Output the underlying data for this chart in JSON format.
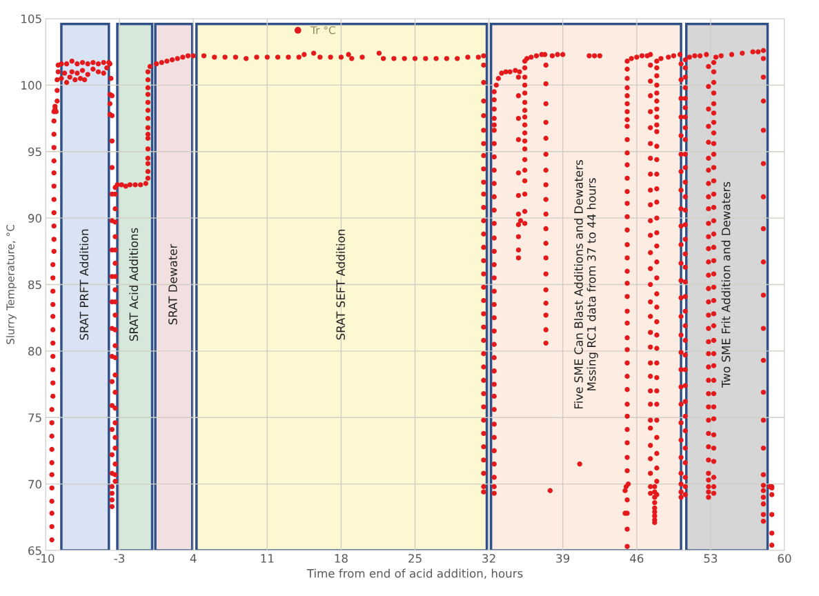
{
  "chart_data": {
    "type": "scatter",
    "xlabel": "Time from end of acid addition, hours",
    "ylabel": "Slurry Temperature, °C",
    "xlim": [
      -10,
      60
    ],
    "xticks": [
      -10,
      -3,
      4,
      11,
      18,
      25,
      32,
      39,
      46,
      53,
      60
    ],
    "ylim": [
      65,
      105
    ],
    "yticks": [
      65,
      70,
      75,
      80,
      85,
      90,
      95,
      100,
      105
    ],
    "grid": true,
    "legend": "top",
    "marker": "circle",
    "bands": [
      {
        "axis": "x",
        "from": -8.5,
        "to": -4.0,
        "label": "SRAT PRFT Addition",
        "color": "#dae3f3"
      },
      {
        "axis": "x",
        "from": -3.2,
        "to": 0.1,
        "label": "SRAT Acid Additions",
        "color": "#d5e8d9"
      },
      {
        "axis": "x",
        "from": 0.4,
        "to": 3.9,
        "label": "SRAT Dewater",
        "color": "#f2dfdf"
      },
      {
        "axis": "x",
        "from": 4.3,
        "to": 31.8,
        "label": "SRAT SEFT Addition",
        "color": "#fdf7d2"
      },
      {
        "axis": "x",
        "from": 32.2,
        "to": 50.2,
        "label": "Five SME Can Blast Additions and Dewaters\nMssing RC1 data from 37 to 44 hours",
        "color": "#fcece1"
      },
      {
        "axis": "x",
        "from": 50.7,
        "to": 58.4,
        "label": "Two SME Frit Addition and Dewaters",
        "color": "#d6d6d6"
      }
    ],
    "series": [
      {
        "name": "Tr °C",
        "color": "#e3191c",
        "x": [
          -9.4,
          -9.4,
          -9.4,
          -9.4,
          -9.4,
          -9.4,
          -9.4,
          -9.4,
          -9.4,
          -9.4,
          -9.4,
          -9.3,
          -9.3,
          -9.3,
          -9.3,
          -9.3,
          -9.3,
          -9.3,
          -9.3,
          -9.3,
          -9.3,
          -9.3,
          -9.2,
          -9.2,
          -9.2,
          -9.2,
          -9.2,
          -9.2,
          -9.2,
          -9.2,
          -9.2,
          -9.2,
          -9.2,
          -9.2,
          -9.1,
          -9.1,
          -9.0,
          -8.9,
          -8.9,
          -8.9,
          -8.8,
          -8.8,
          -8.5,
          -8.0,
          -7.5,
          -7.0,
          -6.5,
          -6.0,
          -5.5,
          -5.0,
          -4.5,
          -4.0,
          -3.9,
          -8.5,
          -8.2,
          -8.0,
          -7.7,
          -7.5,
          -7.2,
          -7.0,
          -6.7,
          -6.5,
          -6.3,
          -6.0,
          -5.5,
          -5.0,
          -4.5,
          -4.2,
          -3.8,
          -3.9,
          -3.9,
          -3.9,
          -3.7,
          -3.7,
          -3.7,
          -3.7,
          -3.7,
          -3.7,
          -3.7,
          -3.7,
          -3.7,
          -3.7,
          -3.7,
          -3.7,
          -3.7,
          -3.7,
          -3.7,
          -3.7,
          -3.7,
          -3.7,
          -3.7,
          -3.7,
          -3.4,
          -3.4,
          -3.4,
          -3.4,
          -3.4,
          -3.4,
          -3.4,
          -3.4,
          -3.4,
          -3.4,
          -3.4,
          -3.4,
          -3.4,
          -3.4,
          -3.4,
          -3.4,
          -3.4,
          -3.4,
          -3.4,
          -3.4,
          -3.4,
          -3.4,
          -3.4,
          -3.2,
          -2.8,
          -2.4,
          -2.0,
          -1.5,
          -1.0,
          -0.5,
          -0.3,
          -0.3,
          -0.3,
          -0.3,
          -0.3,
          -0.3,
          -0.3,
          -0.3,
          -0.3,
          -0.3,
          -0.3,
          -0.3,
          -0.3,
          -0.3,
          -0.3,
          -0.1,
          0.5,
          1.0,
          1.5,
          2.0,
          2.5,
          3.0,
          3.5,
          4.0,
          5,
          6,
          7,
          8,
          9,
          10,
          11,
          12,
          13,
          14,
          14.5,
          15.4,
          16,
          17,
          18,
          18.7,
          19,
          20,
          21.6,
          22,
          23,
          24,
          25,
          26,
          27,
          28,
          29,
          30,
          31,
          31.5,
          31.5,
          31.5,
          31.5,
          31.5,
          31.5,
          31.5,
          31.5,
          31.5,
          31.5,
          31.5,
          31.5,
          31.5,
          31.5,
          31.5,
          31.5,
          31.5,
          31.5,
          31.5,
          31.5,
          31.5,
          31.5,
          31.5,
          31.5,
          31.5,
          31.5,
          31.5,
          31.5,
          31.5,
          31.5,
          31.5,
          31.5,
          31.5,
          31.5,
          32.5,
          32.5,
          32.5,
          32.5,
          32.5,
          32.5,
          32.5,
          32.5,
          32.5,
          32.5,
          32.5,
          32.5,
          32.5,
          32.5,
          32.5,
          32.5,
          32.5,
          32.5,
          32.5,
          32.5,
          32.5,
          32.5,
          32.5,
          32.5,
          32.5,
          32.5,
          32.5,
          32.5,
          32.5,
          32.5,
          32.5,
          32.5,
          32.5,
          32.5,
          32.7,
          32.9,
          33.2,
          33.6,
          34.0,
          34.5,
          34.9,
          34.8,
          34.8,
          34.8,
          34.8,
          34.8,
          34.8,
          34.8,
          34.8,
          34.8,
          34.8,
          34.8,
          35.0,
          35.4,
          35.4,
          35.4,
          35.4,
          35.4,
          35.4,
          35.4,
          35.4,
          35.4,
          35.4,
          35.4,
          35.4,
          35.4,
          35.4,
          35.4,
          35.4,
          35.4,
          35.4,
          35.6,
          36.0,
          36.5,
          37.0,
          37.3,
          37.4,
          37.4,
          37.4,
          37.4,
          37.4,
          37.4,
          37.4,
          37.4,
          37.4,
          37.4,
          37.4,
          37.4,
          37.4,
          37.4,
          37.4,
          37.4,
          37.4,
          37.4,
          37.4,
          37.8,
          38.0,
          38.5,
          39.0,
          40.6,
          41.5,
          42.0,
          42.5,
          45.1,
          45.1,
          44.9,
          45.1,
          45.1,
          44.9,
          45.0,
          45.2,
          45.1,
          45.1,
          45.1,
          45.1,
          45.1,
          45.1,
          45.1,
          45.1,
          45.1,
          45.1,
          45.1,
          45.1,
          45.1,
          45.1,
          45.1,
          45.1,
          45.1,
          45.1,
          45.1,
          45.1,
          45.1,
          45.1,
          45.1,
          45.1,
          45.1,
          45.1,
          45.1,
          45.1,
          45.1,
          45.1,
          45.1,
          45.1,
          45.1,
          45.1,
          45.1,
          45.5,
          46.0,
          46.5,
          47.0,
          47.3,
          47.3,
          47.3,
          47.3,
          47.3,
          47.3,
          47.3,
          47.3,
          47.3,
          47.3,
          47.3,
          47.3,
          47.3,
          47.3,
          47.3,
          47.3,
          47.3,
          47.3,
          47.3,
          47.3,
          47.3,
          47.3,
          47.3,
          47.3,
          47.3,
          47.3,
          47.3,
          47.3,
          47.3,
          47.3,
          47.3,
          47.7,
          47.7,
          47.7,
          47.7,
          47.7,
          47.7,
          47.7,
          47.7,
          47.7,
          47.9,
          47.9,
          47.9,
          47.9,
          47.9,
          47.9,
          47.9,
          47.9,
          47.9,
          47.9,
          47.9,
          47.9,
          47.9,
          47.9,
          47.9,
          47.9,
          47.9,
          47.9,
          47.9,
          47.9,
          47.9,
          47.9,
          47.9,
          47.9,
          47.9,
          47.9,
          47.9,
          47.9,
          47.9,
          47.9,
          47.9,
          47.9,
          47.9,
          47.9,
          47.9,
          48.3,
          49.0,
          49.5,
          50.1,
          50.2,
          50.2,
          50.2,
          50.2,
          50.2,
          50.2,
          50.2,
          50.2,
          50.2,
          50.2,
          50.2,
          50.2,
          50.2,
          50.2,
          50.2,
          50.2,
          50.2,
          50.2,
          50.2,
          50.2,
          50.2,
          50.2,
          50.2,
          50.2,
          50.2,
          50.2,
          50.2,
          50.6,
          50.6,
          50.6,
          50.6,
          50.6,
          50.6,
          50.6,
          50.6,
          50.6,
          50.6,
          50.6,
          50.6,
          50.6,
          50.6,
          50.6,
          50.6,
          50.6,
          50.6,
          50.6,
          50.6,
          50.6,
          50.6,
          50.6,
          50.6,
          50.6,
          50.6,
          50.6,
          50.6,
          50.6,
          50.6,
          50.6,
          50.6,
          50.6,
          50.6,
          51.0,
          51.5,
          52.0,
          52.6,
          52.8,
          52.8,
          52.8,
          52.8,
          52.8,
          52.8,
          52.8,
          52.8,
          52.8,
          52.8,
          52.8,
          52.8,
          52.8,
          52.8,
          52.8,
          52.8,
          52.8,
          52.8,
          52.8,
          52.8,
          52.8,
          52.8,
          52.8,
          52.8,
          52.8,
          52.8,
          52.8,
          52.8,
          52.8,
          52.8,
          52.8,
          52.8,
          52.8,
          52.8,
          53.3,
          53.3,
          53.3,
          53.3,
          53.3,
          53.3,
          53.3,
          53.3,
          53.3,
          53.3,
          53.3,
          53.3,
          53.3,
          53.3,
          53.3,
          53.3,
          53.3,
          53.3,
          53.3,
          53.3,
          53.3,
          53.3,
          53.3,
          53.3,
          53.3,
          53.3,
          53.3,
          53.3,
          53.3,
          53.3,
          53.3,
          53.3,
          53.3,
          53.3,
          53.3,
          53.3,
          53.5,
          54.0,
          55.0,
          56.0,
          57.0,
          57.5,
          58.0,
          58.0,
          58.0,
          58.0,
          58.0,
          58.0,
          58.0,
          58.0,
          58.0,
          58.0,
          58.0,
          58.0,
          58.0,
          58.0,
          58.0,
          58.0,
          58.0,
          58.0,
          58.0,
          58.0,
          58.0,
          58.0,
          58.6,
          58.8,
          58.8,
          58.8,
          58.8,
          58.8,
          58.8
        ],
        "values": [
          65.8,
          66.8,
          67.8,
          68.7,
          69.7,
          70.7,
          71.6,
          72.6,
          73.6,
          74.6,
          75.6,
          76.6,
          77.6,
          78.6,
          79.6,
          80.6,
          81.6,
          82.6,
          83.5,
          84.5,
          85.5,
          86.5,
          87.5,
          88.4,
          89.4,
          90.4,
          91.4,
          92.4,
          93.4,
          94.3,
          95.3,
          96.3,
          97.3,
          98.0,
          98.4,
          98.2,
          98.0,
          98.8,
          99.6,
          100.4,
          101.0,
          101.5,
          101.6,
          101.6,
          101.8,
          101.6,
          101.7,
          101.6,
          101.7,
          101.6,
          101.7,
          101.7,
          101.6,
          100.5,
          100.9,
          100.2,
          100.6,
          101.0,
          100.4,
          100.9,
          100.5,
          101.1,
          100.4,
          100.8,
          101.2,
          101.0,
          100.9,
          101.3,
          100.5,
          99.3,
          98.6,
          97.8,
          97.7,
          99.2,
          95.8,
          93.8,
          91.8,
          89.8,
          87.6,
          85.6,
          83.7,
          81.7,
          79.6,
          77.7,
          75.9,
          74.1,
          72.2,
          70.8,
          69.8,
          69.3,
          68.8,
          68.3,
          70.2,
          70.7,
          71.5,
          72.7,
          73.5,
          74.6,
          75.7,
          76.9,
          78.2,
          79.5,
          80.4,
          81.6,
          82.7,
          83.7,
          84.6,
          85.6,
          86.6,
          87.6,
          88.6,
          89.7,
          90.7,
          91.8,
          92.3,
          92.5,
          92.5,
          92.4,
          92.5,
          92.5,
          92.5,
          92.6,
          93.0,
          93.5,
          94.1,
          94.5,
          95.2,
          96.0,
          96.3,
          96.8,
          97.5,
          98.1,
          98.7,
          99.3,
          99.8,
          100.4,
          101.0,
          101.4,
          101.6,
          101.7,
          101.8,
          101.9,
          102.0,
          102.1,
          102.2,
          102.2,
          102.2,
          102.1,
          102.1,
          102.1,
          102.0,
          102.1,
          102.1,
          102.1,
          102.1,
          102.1,
          102.3,
          102.4,
          102.1,
          102.1,
          102.1,
          102.3,
          102.0,
          102.1,
          102.4,
          102.0,
          102.0,
          102.0,
          102.0,
          102.0,
          102.0,
          102.0,
          102.0,
          102.1,
          102.1,
          102.2,
          101.5,
          100.2,
          98.8,
          97.7,
          96.6,
          95.6,
          94.7,
          93.7,
          92.7,
          91.8,
          90.8,
          89.8,
          88.8,
          87.8,
          86.8,
          85.8,
          84.8,
          83.8,
          82.8,
          81.8,
          80.8,
          79.8,
          78.8,
          77.8,
          76.8,
          75.8,
          74.8,
          73.8,
          72.8,
          71.8,
          70.8,
          69.8,
          69.4,
          69.3,
          69.8,
          70.5,
          71.5,
          72.5,
          73.5,
          74.5,
          75.6,
          76.6,
          77.5,
          78.5,
          79.5,
          80.5,
          81.5,
          82.5,
          83.5,
          84.5,
          85.5,
          86.5,
          87.5,
          88.5,
          89.6,
          90.6,
          91.6,
          92.6,
          93.6,
          94.6,
          95.6,
          96.6,
          97.0,
          97.5,
          98.2,
          98.9,
          99.5,
          100.0,
          100.5,
          100.9,
          101.0,
          101.0,
          101.1,
          101.0,
          100.6,
          99.2,
          97.5,
          95.9,
          93.4,
          91.7,
          90.3,
          89.5,
          88.6,
          87.6,
          87.0,
          89.8,
          89.6,
          90.5,
          91.8,
          92.8,
          93.6,
          94.4,
          95.2,
          95.8,
          96.4,
          97.0,
          97.6,
          98.1,
          98.7,
          99.4,
          100.0,
          100.6,
          101.3,
          101.8,
          102.0,
          102.1,
          102.2,
          102.3,
          102.3,
          101.5,
          100.1,
          98.6,
          97.2,
          96.0,
          94.8,
          93.6,
          92.5,
          91.4,
          90.3,
          89.2,
          88.1,
          87.0,
          85.8,
          84.6,
          83.6,
          82.7,
          81.6,
          80.6,
          69.5,
          102.2,
          102.3,
          102.3,
          71.5,
          102.2,
          102.2,
          102.2,
          65.3,
          66.6,
          67.8,
          67.8,
          68.8,
          69.5,
          69.8,
          70.0,
          71.0,
          72.0,
          73.1,
          74.1,
          75.1,
          76.0,
          77.1,
          78.1,
          79.1,
          80.1,
          81.0,
          82.1,
          83.0,
          84.1,
          85.1,
          86.0,
          87.0,
          88.0,
          89.1,
          90.1,
          91.1,
          92.0,
          93.0,
          94.0,
          94.9,
          95.9,
          96.9,
          97.4,
          98.0,
          98.6,
          99.2,
          99.8,
          100.5,
          101.2,
          101.8,
          102.0,
          102.1,
          102.2,
          102.2,
          102.3,
          101.5,
          100.3,
          99.2,
          98.0,
          96.8,
          95.6,
          94.5,
          93.3,
          92.1,
          91.0,
          89.8,
          88.7,
          87.4,
          86.2,
          85.0,
          83.7,
          82.6,
          81.4,
          80.3,
          79.1,
          78.1,
          77.0,
          76.0,
          74.8,
          74.2,
          72.9,
          71.9,
          70.8,
          69.8,
          69.3,
          69.8,
          69.4,
          69.0,
          68.6,
          68.2,
          67.9,
          67.6,
          67.3,
          67.1,
          69.2,
          70.2,
          71.2,
          72.3,
          73.5,
          74.8,
          76.0,
          77.0,
          78.0,
          79.1,
          80.2,
          81.2,
          82.2,
          83.3,
          84.3,
          85.5,
          86.7,
          87.9,
          88.9,
          90.0,
          91.2,
          92.2,
          93.3,
          94.4,
          95.4,
          96.5,
          97.0,
          97.6,
          98.2,
          98.8,
          99.4,
          100.0,
          100.7,
          101.3,
          101.8,
          102.0,
          102.1,
          102.2,
          102.3,
          101.6,
          100.4,
          99.0,
          97.6,
          96.2,
          94.8,
          93.5,
          92.1,
          90.7,
          89.4,
          88.0,
          86.6,
          85.3,
          84.0,
          82.6,
          81.2,
          79.9,
          78.6,
          77.3,
          76.0,
          74.6,
          73.3,
          72.0,
          70.8,
          70.0,
          69.4,
          69.0,
          69.2,
          69.8,
          70.5,
          71.6,
          72.7,
          74.0,
          75.1,
          76.2,
          77.4,
          78.6,
          79.7,
          80.8,
          81.9,
          83.0,
          84.1,
          85.2,
          86.3,
          87.3,
          88.4,
          89.5,
          90.6,
          91.6,
          92.7,
          93.8,
          94.8,
          95.9,
          96.8,
          97.6,
          98.3,
          99.0,
          99.8,
          100.6,
          101.3,
          101.9,
          102.1,
          102.2,
          102.2,
          102.3,
          101.4,
          99.9,
          98.2,
          96.9,
          95.7,
          94.5,
          93.6,
          92.6,
          91.6,
          90.7,
          89.6,
          88.6,
          87.7,
          86.7,
          85.7,
          84.7,
          83.7,
          82.7,
          81.7,
          80.7,
          79.8,
          78.8,
          77.8,
          76.8,
          75.8,
          74.8,
          73.8,
          72.8,
          71.8,
          70.8,
          70.3,
          69.8,
          69.4,
          69.0,
          69.3,
          69.8,
          70.5,
          71.7,
          72.7,
          73.7,
          74.9,
          75.8,
          76.8,
          77.8,
          78.9,
          79.8,
          80.8,
          81.9,
          82.8,
          83.8,
          84.8,
          85.8,
          86.8,
          87.8,
          88.8,
          89.8,
          90.8,
          91.8,
          92.8,
          93.8,
          94.8,
          95.6,
          96.4,
          97.2,
          97.9,
          98.6,
          99.4,
          100.2,
          101.0,
          101.7,
          102.1,
          102.2,
          102.3,
          102.4,
          102.5,
          102.5,
          102.6,
          102.0,
          100.6,
          98.8,
          96.6,
          94.1,
          91.6,
          89.2,
          86.7,
          84.2,
          81.7,
          79.3,
          76.9,
          74.8,
          72.7,
          70.7,
          69.9,
          69.5,
          69.0,
          68.5,
          67.7,
          67.2,
          69.8,
          69.8,
          69.7,
          69.2,
          67.7,
          66.3,
          65.4
        ]
      }
    ]
  }
}
